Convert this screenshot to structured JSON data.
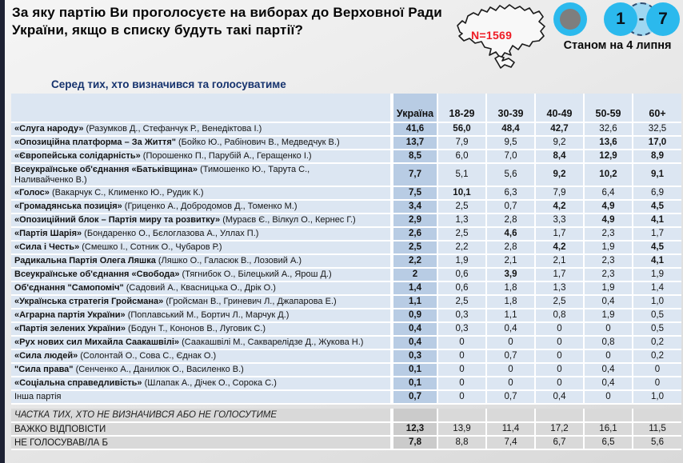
{
  "header": {
    "title": "За яку партію Ви проголосуєте на виборах до Верховної Ради України, якщо в списку будуть такі партії?",
    "sample_size": "N=1569",
    "wave_range": {
      "from": "1",
      "sep": "-",
      "to": "7"
    },
    "date_note": "Станом на 4 липня"
  },
  "subtitle": "Серед тих, хто визначився та голосуватиме",
  "chart_data": {
    "type": "table",
    "title": "За яку партію Ви проголосуєте на виборах до Верховної Ради України, якщо в списку будуть такі партії?",
    "subtitle": "Серед тих, хто визначився та голосуватиме",
    "columns": [
      "Україна",
      "18-29",
      "30-39",
      "40-49",
      "50-59",
      "60+"
    ],
    "rows": [
      {
        "party": "«Слуга народу»",
        "leaders": " (Разумков Д.,  Стефанчук Р., Венедіктова І.)",
        "values": [
          "41,6",
          "56,0",
          "48,4",
          "42,7",
          "32,6",
          "32,5"
        ],
        "bold": [
          true,
          true,
          true,
          true,
          false,
          false
        ]
      },
      {
        "party": "«Опозиційна платформа – За Життя\"",
        "leaders": " (Бойко Ю.,  Рабінович В., Медведчук В.)",
        "values": [
          "13,7",
          "7,9",
          "9,5",
          "9,2",
          "13,6",
          "17,0"
        ],
        "bold": [
          true,
          false,
          false,
          false,
          true,
          true
        ]
      },
      {
        "party": "«Європейська солідарність»",
        "leaders": " (Порошенко П., Парубій А., Геращенко І.)",
        "values": [
          "8,5",
          "6,0",
          "7,0",
          "8,4",
          "12,9",
          "8,9"
        ],
        "bold": [
          true,
          false,
          false,
          true,
          true,
          true
        ]
      },
      {
        "party": "Всеукраїнське об'єднання «Батьківщина»",
        "leaders": " (Тимошенко Ю., Тарута С.,\nНаливайченко В.)",
        "values": [
          "7,7",
          "5,1",
          "5,6",
          "9,2",
          "10,2",
          "9,1"
        ],
        "bold": [
          true,
          false,
          false,
          true,
          true,
          true
        ]
      },
      {
        "party": "«Голос»",
        "leaders": "  (Вакарчук С., Клименко Ю., Рудик К.)",
        "values": [
          "7,5",
          "10,1",
          "6,3",
          "7,9",
          "6,4",
          "6,9"
        ],
        "bold": [
          true,
          true,
          false,
          false,
          false,
          false
        ]
      },
      {
        "party": "«Громадянська позиція»",
        "leaders": " (Гриценко А., Добродомов Д., Томенко М.)",
        "values": [
          "3,4",
          "2,5",
          "0,7",
          "4,2",
          "4,9",
          "4,5"
        ],
        "bold": [
          true,
          false,
          false,
          true,
          true,
          true
        ]
      },
      {
        "party": "«Опозиційний блок – Партія миру та розвитку»",
        "leaders": " (Мураєв Є., Вілкул О., Кернес Г.)",
        "values": [
          "2,9",
          "1,3",
          "2,8",
          "3,3",
          "4,9",
          "4,1"
        ],
        "bold": [
          true,
          false,
          false,
          false,
          true,
          true
        ]
      },
      {
        "party": "«Партія Шарія»",
        "leaders": " (Бондаренко О.,  Бєлоглазова А., Уллах П.)",
        "values": [
          "2,6",
          "2,5",
          "4,6",
          "1,7",
          "2,3",
          "1,7"
        ],
        "bold": [
          true,
          false,
          true,
          false,
          false,
          false
        ]
      },
      {
        "party": "«Сила і Честь»",
        "leaders": " (Смешко І., Сотник О., Чубаров Р.)",
        "values": [
          "2,5",
          "2,2",
          "2,8",
          "4,2",
          "1,9",
          "4,5"
        ],
        "bold": [
          true,
          false,
          false,
          true,
          false,
          true
        ]
      },
      {
        "party": "Радикальна Партія Олега Ляшка",
        "leaders": " (Ляшко О., Галасюк В., Лозовий А.)",
        "values": [
          "2,2",
          "1,9",
          "2,1",
          "2,1",
          "2,3",
          "4,1"
        ],
        "bold": [
          true,
          false,
          false,
          false,
          false,
          true
        ]
      },
      {
        "party": "Всеукраїнське об'єднання «Свобода»",
        "leaders": " (Тягнибок О., Білецький А., Ярош Д.)",
        "values": [
          "2",
          "0,6",
          "3,9",
          "1,7",
          "2,3",
          "1,9"
        ],
        "bold": [
          true,
          false,
          true,
          false,
          false,
          false
        ]
      },
      {
        "party": "Об'єднання \"Самопоміч\"",
        "leaders": "  (Садовий А., Квасницька О., Дрік О.)",
        "values": [
          "1,4",
          "0,6",
          "1,8",
          "1,3",
          "1,9",
          "1,4"
        ],
        "bold": [
          true,
          false,
          false,
          false,
          false,
          false
        ]
      },
      {
        "party": "«Українська стратегія Гройсмана»",
        "leaders": " (Гройсман В.,  Гриневич Л., Джапарова Е.)",
        "values": [
          "1,1",
          "2,5",
          "1,8",
          "2,5",
          "0,4",
          "1,0"
        ],
        "bold": [
          true,
          false,
          false,
          false,
          false,
          false
        ]
      },
      {
        "party": "«Аграрна партія України»",
        "leaders": " (Поплавський М., Бортич Л., Марчук Д.)",
        "values": [
          "0,9",
          "0,3",
          "1,1",
          "0,8",
          "1,9",
          "0,5"
        ],
        "bold": [
          true,
          false,
          false,
          false,
          false,
          false
        ]
      },
      {
        "party": "«Партія зелених України»",
        "leaders": " (Бодун Т., Кононов В., Луговик С.)",
        "values": [
          "0,4",
          "0,3",
          "0,4",
          "0",
          "0",
          "0,5"
        ],
        "bold": [
          true,
          false,
          false,
          false,
          false,
          false
        ]
      },
      {
        "party": "«Рух нових сил Михайла Саакашвілі»",
        "leaders": " (Саакашвілі М., Сакварелідзе Д., Жукова Н.)",
        "values": [
          "0,4",
          "0",
          "0",
          "0",
          "0,8",
          "0,2"
        ],
        "bold": [
          true,
          false,
          false,
          false,
          false,
          false
        ]
      },
      {
        "party": "«Сила людей»",
        "leaders": " (Солонтай О., Сова С., Єднак О.)",
        "values": [
          "0,3",
          "0",
          "0,7",
          "0",
          "0",
          "0,2"
        ],
        "bold": [
          true,
          false,
          false,
          false,
          false,
          false
        ]
      },
      {
        "party": "\"Сила права\"",
        "leaders": " (Сенченко А., Данилюк О., Василенко В.)",
        "values": [
          "0,1",
          "0",
          "0",
          "0",
          "0,4",
          "0"
        ],
        "bold": [
          true,
          false,
          false,
          false,
          false,
          false
        ]
      },
      {
        "party": "«Соціальна справедливість»",
        "leaders": " (Шлапак А., Дічек  О., Сорока С.)",
        "values": [
          "0,1",
          "0",
          "0",
          "0",
          "0,4",
          "0"
        ],
        "bold": [
          true,
          false,
          false,
          false,
          false,
          false
        ]
      },
      {
        "party": "Інша партія",
        "leaders": "",
        "plain": true,
        "values": [
          "0,7",
          "0",
          "0,7",
          "0,4",
          "0",
          "1,0"
        ],
        "bold": [
          true,
          false,
          false,
          false,
          false,
          false
        ]
      }
    ],
    "undecided_section_label": "ЧАСТКА ТИХ, ХТО НЕ ВИЗНАЧИВСЯ АБО НЕ ГОЛОСУТИМЕ",
    "undecided_rows": [
      {
        "party": "ВАЖКО ВІДПОВІСТИ",
        "values": [
          "12,3",
          "13,9",
          "11,4",
          "17,2",
          "16,1",
          "11,5"
        ],
        "bold": [
          true,
          false,
          false,
          false,
          false,
          false
        ]
      },
      {
        "party": "НЕ ГОЛОСУВАВ/ЛА Б",
        "values": [
          "7,8",
          "8,8",
          "7,4",
          "6,7",
          "6,5",
          "5,6"
        ],
        "bold": [
          true,
          false,
          false,
          false,
          false,
          false
        ]
      }
    ]
  },
  "colors": {
    "accent_cyan": "#2bb9ed",
    "sample_red": "#ee1b24",
    "row_blue": "#dce6f2",
    "ukraine_column_blue": "#b8cce4",
    "footer_gray": "#d9d9d9",
    "subtitle_navy": "#16336e",
    "edge_bar_navy": "#1d2133"
  }
}
